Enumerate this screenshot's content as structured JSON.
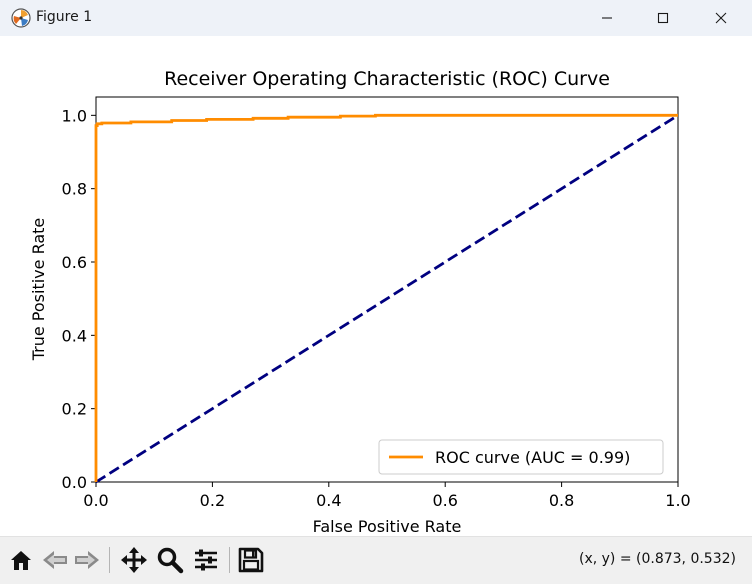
{
  "window": {
    "title": "Figure 1",
    "icons": [
      "matplotlib-logo-icon",
      "minimize-icon",
      "maximize-icon",
      "close-icon"
    ]
  },
  "toolbar": {
    "buttons": [
      "home-icon",
      "back-icon",
      "forward-icon",
      "pan-icon",
      "zoom-icon",
      "configure-subplots-icon",
      "save-icon"
    ],
    "coords_text": "(x, y) = (0.873, 0.532)"
  },
  "chart_data": {
    "type": "line",
    "title": "Receiver Operating Characteristic (ROC) Curve",
    "xlabel": "False Positive Rate",
    "ylabel": "True Positive Rate",
    "xlim": [
      0.0,
      1.0
    ],
    "ylim": [
      0.0,
      1.05
    ],
    "xticks": [
      "0.0",
      "0.2",
      "0.4",
      "0.6",
      "0.8",
      "1.0"
    ],
    "yticks": [
      "0.0",
      "0.2",
      "0.4",
      "0.6",
      "0.8",
      "1.0"
    ],
    "grid": false,
    "legend_position": "lower right",
    "series": [
      {
        "name": "ROC curve (AUC = 0.99)",
        "color": "#ff8c00",
        "style": "solid",
        "x": [
          0.0,
          0.0,
          0.002,
          0.002,
          0.01,
          0.01,
          0.06,
          0.06,
          0.13,
          0.13,
          0.19,
          0.19,
          0.27,
          0.27,
          0.33,
          0.33,
          0.42,
          0.42,
          0.48,
          0.48,
          1.0
        ],
        "y": [
          0.0,
          0.972,
          0.972,
          0.977,
          0.977,
          0.979,
          0.979,
          0.982,
          0.982,
          0.986,
          0.986,
          0.989,
          0.989,
          0.992,
          0.992,
          0.995,
          0.995,
          0.998,
          0.998,
          1.0,
          1.0
        ]
      },
      {
        "color": "#000080",
        "style": "dashed",
        "x": [
          0.0,
          1.0
        ],
        "y": [
          0.0,
          1.0
        ]
      }
    ]
  }
}
